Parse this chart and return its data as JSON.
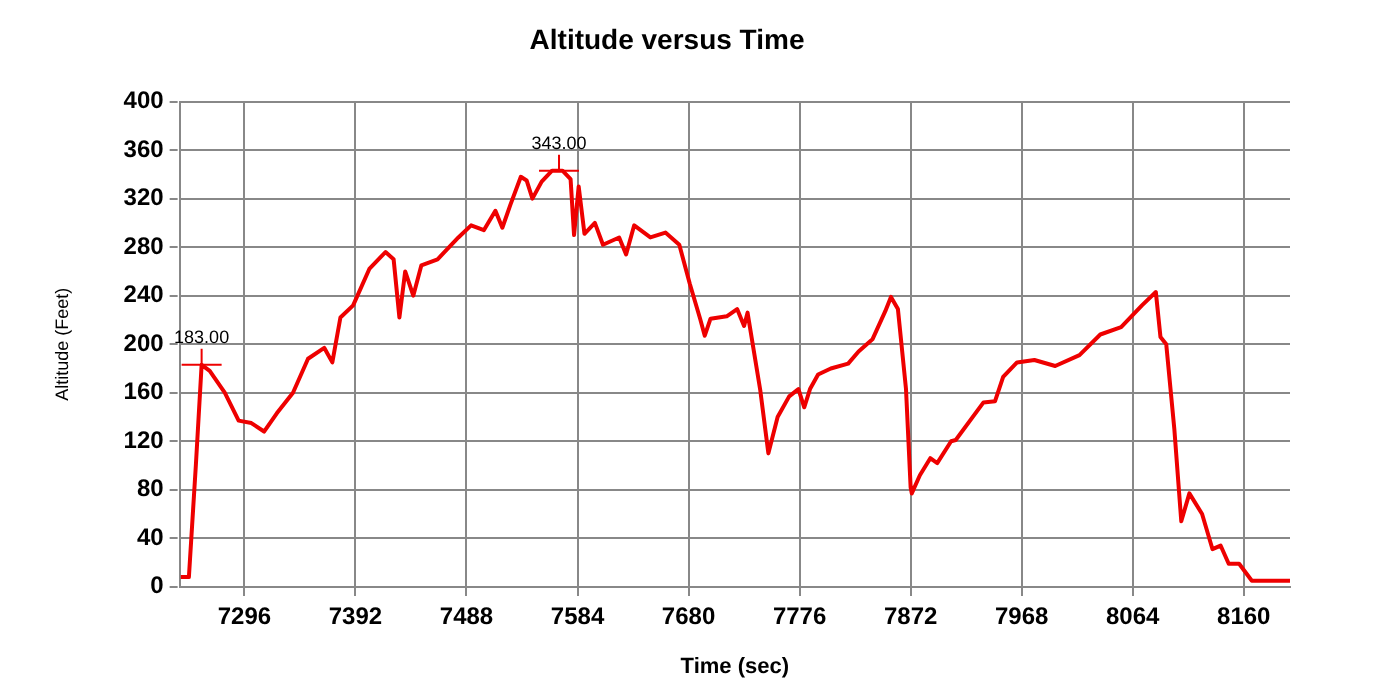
{
  "chart_data": {
    "type": "line",
    "title": "Altitude versus Time",
    "xlabel": "Time (sec)",
    "ylabel": "Altitude (Feet)",
    "color": "#ee0000",
    "x": [
      7241,
      7248,
      7254,
      7259,
      7266,
      7279,
      7291,
      7302,
      7313,
      7324,
      7338,
      7351,
      7365,
      7372,
      7379,
      7390,
      7404,
      7418,
      7425,
      7430,
      7435,
      7442,
      7449,
      7463,
      7481,
      7492,
      7503,
      7513,
      7519,
      7526,
      7535,
      7540,
      7545,
      7553,
      7562,
      7571,
      7578,
      7581,
      7585,
      7590,
      7599,
      7606,
      7620,
      7626,
      7633,
      7647,
      7660,
      7672,
      7681,
      7690,
      7694,
      7699,
      7713,
      7722,
      7728,
      7731,
      7742,
      7749,
      7757,
      7767,
      7775,
      7780,
      7785,
      7792,
      7803,
      7818,
      7827,
      7839,
      7850,
      7855,
      7861,
      7868,
      7872,
      7873,
      7880,
      7889,
      7895,
      7907,
      7911,
      7935,
      7945,
      7952,
      7964,
      7979,
      7997,
      8018,
      8036,
      8054,
      8072,
      8084,
      8088,
      8093,
      8100,
      8106,
      8113,
      8124,
      8133,
      8140,
      8147,
      8156,
      8167,
      8200
    ],
    "values": [
      8,
      8,
      100,
      183,
      178,
      160,
      137,
      135,
      128,
      143,
      160,
      188,
      197,
      185,
      222,
      232,
      262,
      276,
      270,
      222,
      260,
      240,
      265,
      270,
      288,
      298,
      294,
      310,
      296,
      315,
      338,
      335,
      320,
      334,
      343,
      343,
      336,
      290,
      330,
      291,
      300,
      282,
      288,
      274,
      298,
      288,
      292,
      282,
      250,
      221,
      207,
      221,
      223,
      229,
      215,
      226,
      162,
      110,
      140,
      157,
      163,
      148,
      163,
      175,
      180,
      184,
      194,
      204,
      227,
      239,
      229,
      163,
      82,
      77,
      92,
      106,
      102,
      120,
      121,
      152,
      153,
      173,
      185,
      187,
      182,
      191,
      208,
      214,
      232,
      243,
      206,
      200,
      130,
      54,
      77,
      60,
      31,
      34,
      19,
      19,
      5,
      5
    ],
    "xlim": [
      7240,
      8200
    ],
    "xticks": [
      7296,
      7392,
      7488,
      7584,
      7680,
      7776,
      7872,
      7968,
      8064,
      8160
    ],
    "ylim": [
      0,
      400
    ],
    "yticks": [
      0,
      40,
      80,
      120,
      160,
      200,
      240,
      280,
      320,
      360,
      400
    ],
    "grid": true,
    "marker": "none",
    "annotations": [
      {
        "text": "183.00",
        "x": 7259,
        "y": 183
      },
      {
        "text": "343.00",
        "x": 7568,
        "y": 343
      }
    ]
  }
}
